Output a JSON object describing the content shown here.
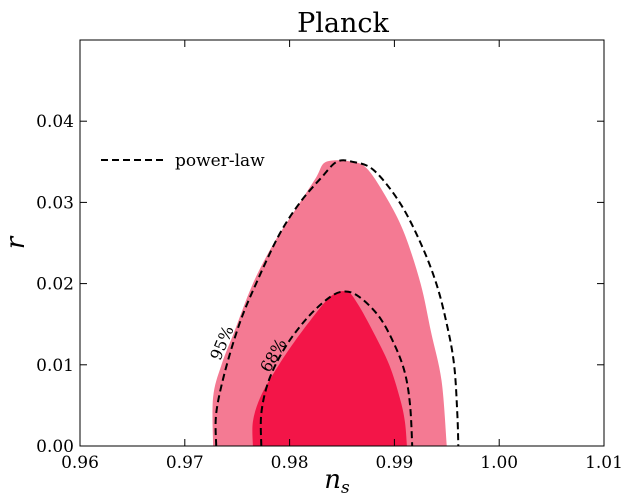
{
  "chart_data": {
    "type": "contour",
    "title": "Planck",
    "xlabel": "n",
    "xlabel_sub": "s",
    "ylabel": "r",
    "xlim": [
      0.96,
      1.01
    ],
    "ylim": [
      0.0,
      0.05
    ],
    "xticks": [
      0.96,
      0.97,
      0.98,
      0.99,
      1.0,
      1.01
    ],
    "xtick_labels": [
      "0.96",
      "0.97",
      "0.98",
      "0.99",
      "1.00",
      "1.01"
    ],
    "yticks": [
      0.0,
      0.01,
      0.02,
      0.03,
      0.04
    ],
    "ytick_labels": [
      "0.00",
      "0.01",
      "0.02",
      "0.03",
      "0.04"
    ],
    "legend": {
      "placement": "upper-left",
      "entries": [
        {
          "label": "power-law",
          "style": "dashed"
        }
      ]
    },
    "colors": {
      "region95": "#f47a93",
      "region68": "#f31548",
      "dashed": "#000000"
    },
    "regions": [
      {
        "name": "95%",
        "points": [
          [
            0.9727,
            0.0
          ],
          [
            0.9727,
            0.006
          ],
          [
            0.9735,
            0.01
          ],
          [
            0.9747,
            0.014
          ],
          [
            0.9765,
            0.02
          ],
          [
            0.9785,
            0.025
          ],
          [
            0.9805,
            0.029
          ],
          [
            0.9825,
            0.033
          ],
          [
            0.9835,
            0.035
          ],
          [
            0.986,
            0.035
          ],
          [
            0.9875,
            0.034
          ],
          [
            0.9895,
            0.03
          ],
          [
            0.991,
            0.026
          ],
          [
            0.9925,
            0.02
          ],
          [
            0.9935,
            0.014
          ],
          [
            0.9945,
            0.008
          ],
          [
            0.995,
            0.0
          ]
        ]
      },
      {
        "name": "68%",
        "points": [
          [
            0.9765,
            0.0
          ],
          [
            0.9765,
            0.003
          ],
          [
            0.9772,
            0.006
          ],
          [
            0.9785,
            0.009
          ],
          [
            0.98,
            0.012
          ],
          [
            0.982,
            0.0155
          ],
          [
            0.984,
            0.0185
          ],
          [
            0.9855,
            0.019
          ],
          [
            0.9865,
            0.0175
          ],
          [
            0.988,
            0.014
          ],
          [
            0.9895,
            0.01
          ],
          [
            0.9905,
            0.006
          ],
          [
            0.991,
            0.003
          ],
          [
            0.9912,
            0.0
          ]
        ]
      }
    ],
    "power_law_curves": [
      {
        "label": "95%",
        "points": [
          [
            0.973,
            0.0
          ],
          [
            0.973,
            0.004
          ],
          [
            0.9738,
            0.009
          ],
          [
            0.9752,
            0.015
          ],
          [
            0.9768,
            0.02
          ],
          [
            0.979,
            0.026
          ],
          [
            0.981,
            0.03
          ],
          [
            0.983,
            0.033
          ],
          [
            0.9845,
            0.035
          ],
          [
            0.986,
            0.035
          ],
          [
            0.988,
            0.034
          ],
          [
            0.9905,
            0.03
          ],
          [
            0.9925,
            0.025
          ],
          [
            0.994,
            0.02
          ],
          [
            0.995,
            0.015
          ],
          [
            0.9957,
            0.01
          ],
          [
            0.996,
            0.004
          ],
          [
            0.9961,
            0.0
          ]
        ]
      },
      {
        "label": "68%",
        "points": [
          [
            0.9773,
            0.0
          ],
          [
            0.9773,
            0.004
          ],
          [
            0.978,
            0.008
          ],
          [
            0.9795,
            0.012
          ],
          [
            0.9815,
            0.0155
          ],
          [
            0.9835,
            0.018
          ],
          [
            0.985,
            0.019
          ],
          [
            0.9865,
            0.0185
          ],
          [
            0.9885,
            0.016
          ],
          [
            0.99,
            0.0125
          ],
          [
            0.991,
            0.009
          ],
          [
            0.9915,
            0.005
          ],
          [
            0.9917,
            0.0
          ]
        ]
      }
    ],
    "annotations": [
      "95%",
      "68%"
    ]
  }
}
